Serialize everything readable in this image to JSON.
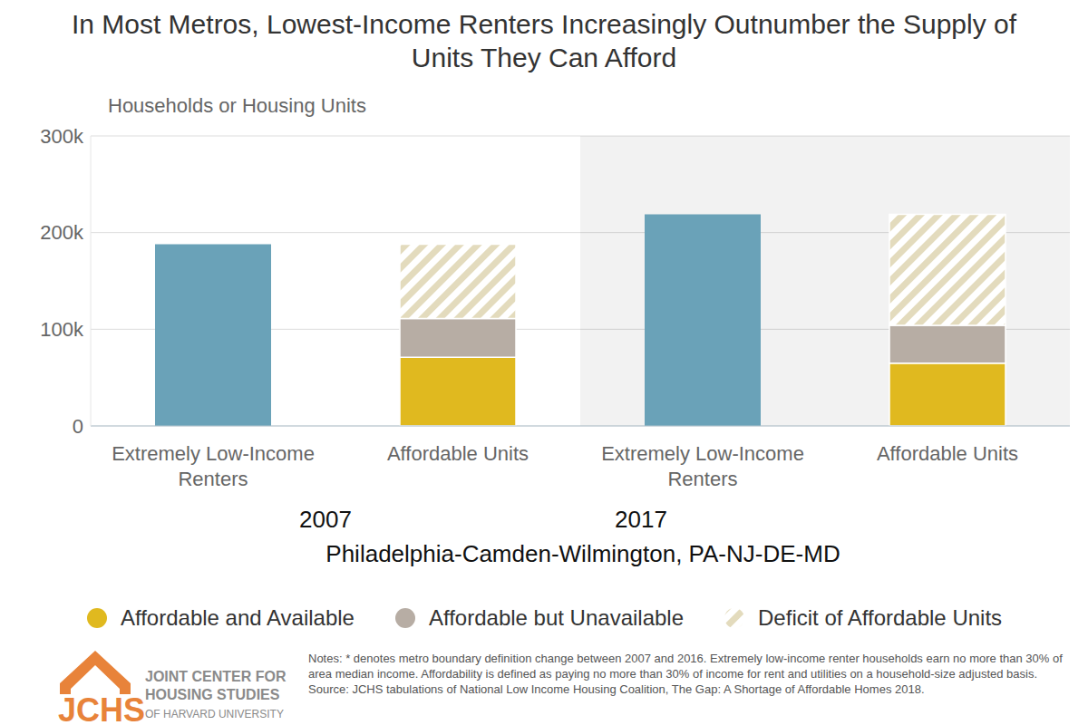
{
  "chart_data": {
    "type": "bar",
    "stacked": true,
    "title": "In Most Metros, Lowest-Income Renters Increasingly Outnumber the Supply of Units They Can Afford",
    "y_label": "Households or Housing Units",
    "categories": [
      "Extremely Low-Income Renters",
      "Affordable Units",
      "Extremely Low-Income Renters",
      "Affordable Units"
    ],
    "groups": [
      "2007",
      "2017"
    ],
    "region": "Philadelphia-Camden-Wilmington, PA-NJ-DE-MD",
    "values": [
      188000,
      null,
      219000,
      null
    ],
    "color": "#6aa2b8",
    "series": [
      {
        "name": "Affordable and Available",
        "color": "#e0b91f",
        "values": [
          null,
          71000,
          null,
          65000
        ]
      },
      {
        "name": "Affordable but Unavailable",
        "color": "#b7ada4",
        "values": [
          null,
          40000,
          null,
          39000
        ]
      },
      {
        "name": "Deficit of Affordable Units",
        "color": "#e3dbbd",
        "values": [
          null,
          77000,
          null,
          115000
        ]
      }
    ],
    "ylim": [
      0,
      300000
    ],
    "yticks": [
      0,
      {
        "value": 100000,
        "label": "100k"
      },
      {
        "value": 200000,
        "label": "200k"
      },
      {
        "value": 300000,
        "label": "300k"
      }
    ],
    "grid": true,
    "legend": "bottom",
    "notes": "Notes: * denotes metro boundary definition change between 2007 and 2016. Extremely low-income renter households earn no more than 30% of area median income. Affordability is defined as paying no more than 30% of income for rent and utilities on a household-size adjusted basis.",
    "source": "Source: JCHS tabulations of National Low Income Housing Coalition, The Gap: A Shortage of Affordable Homes 2018.",
    "logo": {
      "mark": "JCHS",
      "lines": [
        "JOINT CENTER FOR",
        "HOUSING STUDIES",
        "OF HARVARD UNIVERSITY"
      ]
    }
  }
}
